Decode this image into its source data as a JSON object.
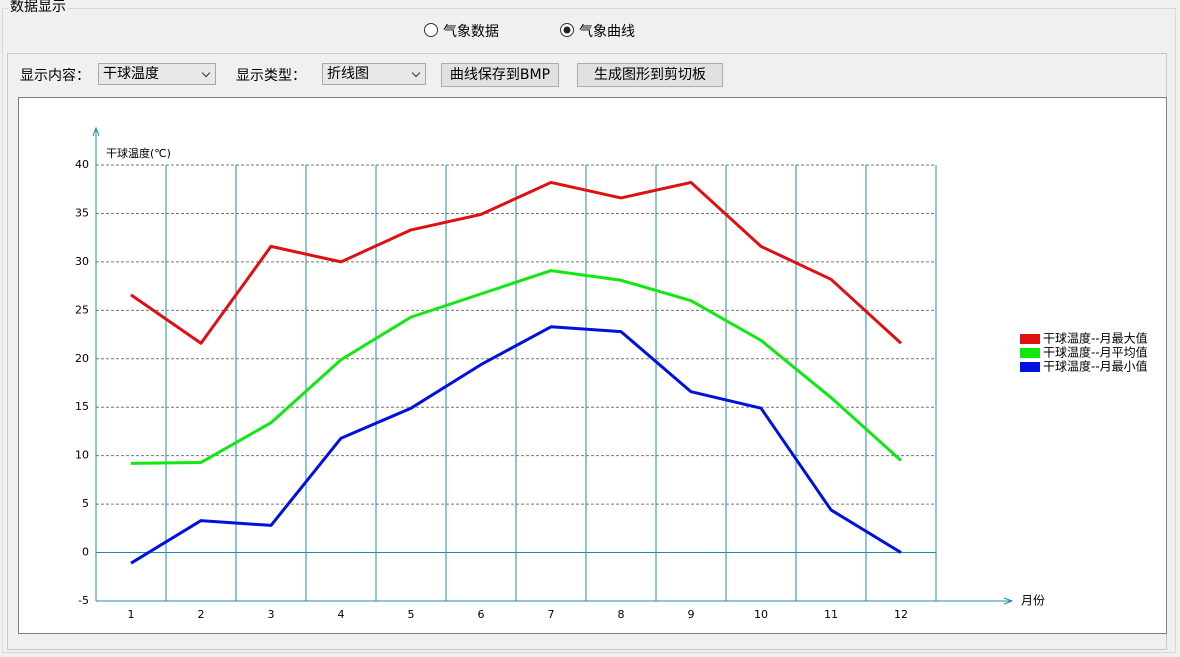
{
  "window": {
    "group_title": "数据显示",
    "radios": [
      "气象数据",
      "气象曲线"
    ],
    "toolbar": {
      "content_label": "显示内容：",
      "content_value": "干球温度",
      "type_label": "显示类型：",
      "type_value": "折线图",
      "buttons": [
        "曲线保存到BMP",
        "生成图形到剪切板"
      ]
    }
  },
  "chart_data": {
    "type": "line",
    "y_label": "干球温度(℃)",
    "x_label": "月份",
    "x": [
      1,
      2,
      3,
      4,
      5,
      6,
      7,
      8,
      9,
      10,
      11,
      12
    ],
    "xlim": [
      0.5,
      12.5
    ],
    "xticks": [
      1,
      2,
      3,
      4,
      5,
      6,
      7,
      8,
      9,
      10,
      11,
      12
    ],
    "ylim": [
      -5,
      40
    ],
    "yticks": [
      -5,
      0,
      5,
      10,
      15,
      20,
      25,
      30,
      35,
      40
    ],
    "grid": true,
    "legend": "right",
    "series": [
      {
        "name": "干球温度--月最大值",
        "color": "#e01010",
        "values": [
          26.6,
          21.6,
          31.6,
          30.0,
          33.3,
          34.9,
          38.2,
          36.6,
          38.2,
          31.6,
          28.2,
          21.6
        ]
      },
      {
        "name": "干球温度--月平均值",
        "color": "#10e810",
        "values": [
          9.2,
          9.3,
          13.4,
          19.9,
          24.3,
          26.7,
          29.1,
          28.1,
          26.0,
          21.9,
          16.0,
          9.5
        ]
      },
      {
        "name": "干球温度--月最小值",
        "color": "#0010e0",
        "values": [
          -1.1,
          3.3,
          2.8,
          11.8,
          14.9,
          19.4,
          23.3,
          22.8,
          16.6,
          14.9,
          4.4,
          0
        ]
      }
    ]
  }
}
